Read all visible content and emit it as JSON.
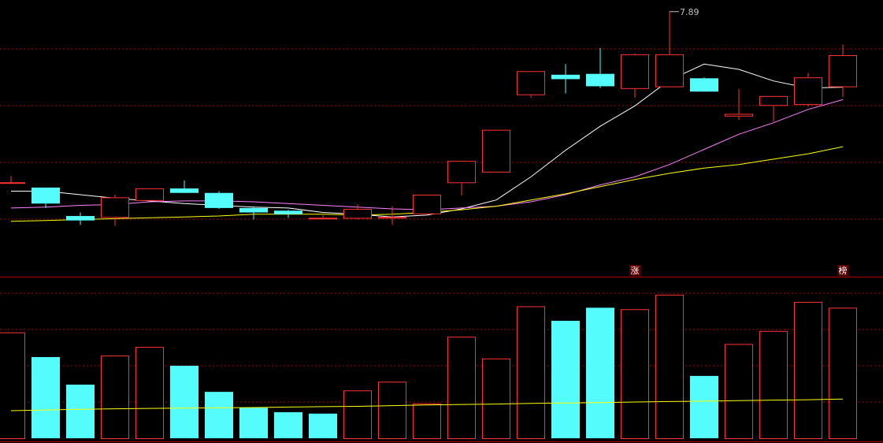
{
  "colors": {
    "background": "#000000",
    "up": "#ff3232",
    "down": "#54fcfc",
    "ma5": "#ffffff",
    "ma10": "#ff80ff",
    "ma20": "#ffff00",
    "vol_ma": "#ffff00",
    "grid": "#b40000",
    "annotation": "#c0c0c0"
  },
  "chart_data": [
    {
      "type": "candlestick",
      "title": "",
      "ylim": [
        5.2,
        7.95
      ],
      "grid": true,
      "peak_label": "7.89",
      "markers": [
        {
          "index": 18,
          "text": "涨"
        },
        {
          "index": 24,
          "text": "榜"
        }
      ],
      "candles": [
        {
          "o": 5.97,
          "h": 6.04,
          "l": 5.97,
          "c": 5.97
        },
        {
          "o": 5.91,
          "h": 5.91,
          "l": 5.68,
          "c": 5.73
        },
        {
          "o": 5.59,
          "h": 5.63,
          "l": 5.49,
          "c": 5.54
        },
        {
          "o": 5.57,
          "h": 5.83,
          "l": 5.48,
          "c": 5.8
        },
        {
          "o": 5.76,
          "h": 5.9,
          "l": 5.76,
          "c": 5.9
        },
        {
          "o": 5.9,
          "h": 5.99,
          "l": 5.87,
          "c": 5.85
        },
        {
          "o": 5.85,
          "h": 5.87,
          "l": 5.67,
          "c": 5.68
        },
        {
          "o": 5.68,
          "h": 5.7,
          "l": 5.55,
          "c": 5.63
        },
        {
          "o": 5.65,
          "h": 5.66,
          "l": 5.57,
          "c": 5.61
        },
        {
          "o": 5.57,
          "h": 5.6,
          "l": 5.55,
          "c": 5.57
        },
        {
          "o": 5.56,
          "h": 5.72,
          "l": 5.55,
          "c": 5.67
        },
        {
          "o": 5.57,
          "h": 5.7,
          "l": 5.49,
          "c": 5.58
        },
        {
          "o": 5.61,
          "h": 5.83,
          "l": 5.61,
          "c": 5.83
        },
        {
          "o": 5.96,
          "h": 6.21,
          "l": 5.82,
          "c": 6.21
        },
        {
          "o": 6.08,
          "h": 6.56,
          "l": 6.08,
          "c": 6.56
        },
        {
          "o": 6.95,
          "h": 7.22,
          "l": 6.92,
          "c": 7.22
        },
        {
          "o": 7.18,
          "h": 7.3,
          "l": 6.97,
          "c": 7.13
        },
        {
          "o": 7.19,
          "h": 7.48,
          "l": 7.03,
          "c": 7.05
        },
        {
          "o": 7.02,
          "h": 7.42,
          "l": 6.92,
          "c": 7.41
        },
        {
          "o": 7.04,
          "h": 7.89,
          "l": 7.04,
          "c": 7.41
        },
        {
          "o": 7.14,
          "h": 7.15,
          "l": 6.99,
          "c": 6.99
        },
        {
          "o": 6.71,
          "h": 7.02,
          "l": 6.67,
          "c": 6.74
        },
        {
          "o": 6.83,
          "h": 6.94,
          "l": 6.65,
          "c": 6.94
        },
        {
          "o": 6.84,
          "h": 7.2,
          "l": 6.82,
          "c": 7.15
        },
        {
          "o": 7.04,
          "h": 7.52,
          "l": 6.93,
          "c": 7.4
        }
      ],
      "ma": [
        {
          "period": 5,
          "values": [
            5.87,
            5.87,
            5.83,
            5.79,
            5.76,
            5.73,
            5.71,
            5.69,
            5.68,
            5.63,
            5.61,
            5.58,
            5.6,
            5.67,
            5.77,
            6.03,
            6.33,
            6.6,
            6.83,
            7.12,
            7.3,
            7.24,
            7.11,
            7.03,
            7.04
          ]
        },
        {
          "period": 10,
          "values": [
            5.68,
            5.69,
            5.71,
            5.72,
            5.75,
            5.76,
            5.76,
            5.75,
            5.73,
            5.71,
            5.69,
            5.67,
            5.66,
            5.68,
            5.7,
            5.75,
            5.83,
            5.94,
            6.03,
            6.17,
            6.34,
            6.51,
            6.64,
            6.79,
            6.9
          ]
        },
        {
          "period": 20,
          "values": [
            5.53,
            5.54,
            5.55,
            5.56,
            5.57,
            5.58,
            5.59,
            5.61,
            5.61,
            5.61,
            5.6,
            5.61,
            5.63,
            5.66,
            5.7,
            5.77,
            5.84,
            5.92,
            6.0,
            6.07,
            6.13,
            6.17,
            6.23,
            6.29,
            6.37
          ]
        }
      ]
    },
    {
      "type": "bar",
      "title": "",
      "ylim": [
        0,
        100
      ],
      "values": [
        73,
        56,
        37,
        57,
        63,
        50,
        32,
        21,
        18,
        17,
        33,
        39,
        24,
        70,
        55,
        91,
        81,
        90,
        89,
        99,
        43,
        65,
        74,
        94,
        90
      ],
      "direction": [
        "up",
        "down",
        "down",
        "up",
        "up",
        "down",
        "down",
        "down",
        "down",
        "down",
        "up",
        "up",
        "up",
        "up",
        "up",
        "up",
        "down",
        "down",
        "up",
        "up",
        "down",
        "up",
        "up",
        "up",
        "up"
      ],
      "ma_values": [
        19,
        19.5,
        20,
        20.3,
        20.6,
        20.8,
        21,
        21.2,
        21.5,
        21.8,
        22,
        22.5,
        23,
        23.3,
        23.6,
        24,
        24.3,
        24.6,
        25,
        25.3,
        25.6,
        26,
        26.3,
        26.6,
        27
      ]
    }
  ]
}
